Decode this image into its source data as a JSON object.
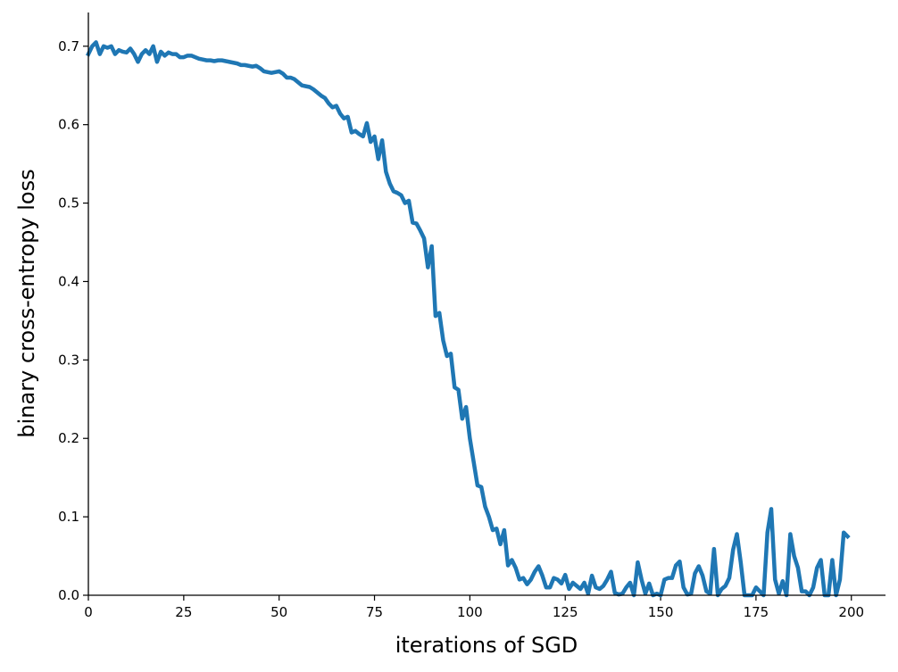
{
  "chart_data": {
    "type": "line",
    "xlabel": "iterations of SGD",
    "ylabel": "binary cross-entropy loss",
    "x": [
      0,
      1,
      2,
      3,
      4,
      5,
      6,
      7,
      8,
      9,
      10,
      11,
      12,
      13,
      14,
      15,
      16,
      17,
      18,
      19,
      20,
      21,
      22,
      23,
      24,
      25,
      26,
      27,
      28,
      29,
      30,
      31,
      32,
      33,
      34,
      35,
      36,
      37,
      38,
      39,
      40,
      41,
      42,
      43,
      44,
      45,
      46,
      47,
      48,
      49,
      50,
      51,
      52,
      53,
      54,
      55,
      56,
      57,
      58,
      59,
      60,
      61,
      62,
      63,
      64,
      65,
      66,
      67,
      68,
      69,
      70,
      71,
      72,
      73,
      74,
      75,
      76,
      77,
      78,
      79,
      80,
      81,
      82,
      83,
      84,
      85,
      86,
      87,
      88,
      89,
      90,
      91,
      92,
      93,
      94,
      95,
      96,
      97,
      98,
      99,
      100,
      101,
      102,
      103,
      104,
      105,
      106,
      107,
      108,
      109,
      110,
      111,
      112,
      113,
      114,
      115,
      116,
      117,
      118,
      119,
      120,
      121,
      122,
      123,
      124,
      125,
      126,
      127,
      128,
      129,
      130,
      131,
      132,
      133,
      134,
      135,
      136,
      137,
      138,
      139,
      140,
      141,
      142,
      143,
      144,
      145,
      146,
      147,
      148,
      149,
      150,
      151,
      152,
      153,
      154,
      155,
      156,
      157,
      158,
      159,
      160,
      161,
      162,
      163,
      164,
      165,
      166,
      167,
      168,
      169,
      170,
      171,
      172,
      173,
      174,
      175,
      176,
      177,
      178,
      179,
      180,
      181,
      182,
      183,
      184,
      185,
      186,
      187,
      188,
      189,
      190,
      191,
      192,
      193,
      194,
      195,
      196,
      197,
      198,
      199
    ],
    "series": [
      {
        "color": "#1f77b4",
        "values": [
          0.69,
          0.7,
          0.705,
          0.69,
          0.7,
          0.698,
          0.7,
          0.69,
          0.695,
          0.693,
          0.692,
          0.697,
          0.69,
          0.68,
          0.69,
          0.695,
          0.69,
          0.7,
          0.68,
          0.693,
          0.688,
          0.692,
          0.69,
          0.69,
          0.686,
          0.686,
          0.688,
          0.688,
          0.686,
          0.684,
          0.683,
          0.682,
          0.682,
          0.681,
          0.682,
          0.682,
          0.681,
          0.68,
          0.679,
          0.678,
          0.676,
          0.676,
          0.675,
          0.674,
          0.675,
          0.672,
          0.668,
          0.667,
          0.666,
          0.667,
          0.668,
          0.665,
          0.66,
          0.66,
          0.658,
          0.654,
          0.65,
          0.649,
          0.648,
          0.645,
          0.641,
          0.637,
          0.634,
          0.627,
          0.622,
          0.624,
          0.614,
          0.608,
          0.61,
          0.59,
          0.592,
          0.588,
          0.585,
          0.602,
          0.578,
          0.585,
          0.556,
          0.58,
          0.54,
          0.525,
          0.515,
          0.513,
          0.51,
          0.5,
          0.503,
          0.475,
          0.474,
          0.465,
          0.455,
          0.418,
          0.445,
          0.356,
          0.36,
          0.325,
          0.305,
          0.308,
          0.265,
          0.262,
          0.225,
          0.24,
          0.2,
          0.17,
          0.14,
          0.138,
          0.113,
          0.1,
          0.083,
          0.085,
          0.065,
          0.083,
          0.038,
          0.045,
          0.035,
          0.02,
          0.022,
          0.014,
          0.02,
          0.03,
          0.037,
          0.025,
          0.01,
          0.01,
          0.022,
          0.02,
          0.015,
          0.026,
          0.008,
          0.016,
          0.012,
          0.008,
          0.016,
          0.002,
          0.025,
          0.01,
          0.008,
          0.012,
          0.02,
          0.03,
          0.003,
          0.001,
          0.002,
          0.01,
          0.016,
          0.0,
          0.042,
          0.02,
          0.002,
          0.015,
          0.0,
          0.002,
          0.0,
          0.02,
          0.022,
          0.022,
          0.038,
          0.043,
          0.01,
          0.001,
          0.002,
          0.028,
          0.037,
          0.025,
          0.005,
          0.002,
          0.059,
          0.0,
          0.008,
          0.012,
          0.022,
          0.058,
          0.078,
          0.042,
          0.0,
          0.0,
          0.0,
          0.01,
          0.005,
          0.0,
          0.08,
          0.11,
          0.02,
          0.002,
          0.018,
          0.0,
          0.078,
          0.05,
          0.035,
          0.005,
          0.005,
          0.0,
          0.01,
          0.035,
          0.045,
          0.0,
          0.0,
          0.045,
          0.0,
          0.02,
          0.08,
          0.075
        ]
      }
    ],
    "xlim": [
      0,
      208.95
    ],
    "xticks": [
      0,
      25,
      50,
      75,
      100,
      125,
      150,
      175,
      200
    ],
    "ylim": [
      0,
      0.743
    ],
    "yticks": [
      0.0,
      0.1,
      0.2,
      0.3,
      0.4,
      0.5,
      0.6,
      0.7
    ]
  }
}
